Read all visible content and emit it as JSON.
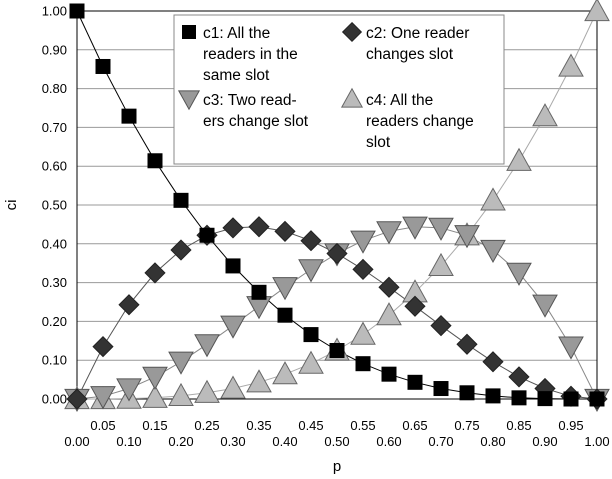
{
  "chart_data": {
    "type": "line",
    "xlabel": "p",
    "ylabel": "ci",
    "xlim": [
      0,
      1
    ],
    "ylim": [
      0,
      1
    ],
    "grid": true,
    "legend_position": "top-center",
    "x_ticks_top": [
      "0.05",
      "0.15",
      "0.25",
      "0.35",
      "0.45",
      "0.55",
      "0.65",
      "0.75",
      "0.85",
      "0.95"
    ],
    "x_ticks_bottom": [
      "0.00",
      "0.10",
      "0.20",
      "0.30",
      "0.40",
      "0.50",
      "0.60",
      "0.70",
      "0.80",
      "0.90",
      "1.00"
    ],
    "y_ticks": [
      "0.00",
      "0.10",
      "0.20",
      "0.30",
      "0.40",
      "0.50",
      "0.60",
      "0.70",
      "0.80",
      "0.90",
      "1.00"
    ],
    "x": [
      0,
      0.05,
      0.1,
      0.15,
      0.2,
      0.25,
      0.3,
      0.35,
      0.4,
      0.45,
      0.5,
      0.55,
      0.6,
      0.65,
      0.7,
      0.75,
      0.8,
      0.85,
      0.9,
      0.95,
      1.0
    ],
    "series": [
      {
        "name": "c1: All the readers in the same slot",
        "legend_lines": [
          "c1: All the",
          "readers in the",
          "same slot"
        ],
        "marker": "square",
        "color": "#000000",
        "line_color": "#000000",
        "values": [
          1.0,
          0.857,
          0.729,
          0.614,
          0.512,
          0.422,
          0.343,
          0.275,
          0.216,
          0.166,
          0.125,
          0.091,
          0.064,
          0.043,
          0.027,
          0.016,
          0.008,
          0.003,
          0.001,
          0.0,
          0.0
        ]
      },
      {
        "name": "c2: One reader changes slot",
        "legend_lines": [
          "c2: One reader",
          "changes slot"
        ],
        "marker": "diamond",
        "color": "#333333",
        "line_color": "#555555",
        "values": [
          0,
          0.135,
          0.243,
          0.325,
          0.384,
          0.422,
          0.441,
          0.444,
          0.432,
          0.408,
          0.375,
          0.334,
          0.288,
          0.239,
          0.189,
          0.141,
          0.096,
          0.057,
          0.027,
          0.007,
          0
        ]
      },
      {
        "name": "c3: Two readers change slot",
        "legend_lines": [
          "c3: Two read-",
          "ers change slot"
        ],
        "marker": "triangle-down",
        "color": "#999999",
        "line_color": "#888888",
        "values": [
          0,
          0.007,
          0.027,
          0.057,
          0.096,
          0.141,
          0.189,
          0.239,
          0.288,
          0.334,
          0.375,
          0.408,
          0.432,
          0.444,
          0.441,
          0.422,
          0.384,
          0.325,
          0.243,
          0.135,
          0
        ]
      },
      {
        "name": "c4: All the readers change slot",
        "legend_lines": [
          "c4: All the",
          "readers change",
          "slot"
        ],
        "marker": "triangle-up",
        "color": "#bbbbbb",
        "line_color": "#aaaaaa",
        "values": [
          0,
          0.0,
          0.001,
          0.003,
          0.008,
          0.016,
          0.027,
          0.043,
          0.064,
          0.091,
          0.125,
          0.166,
          0.216,
          0.275,
          0.343,
          0.422,
          0.512,
          0.614,
          0.729,
          0.857,
          1.0
        ]
      }
    ]
  }
}
